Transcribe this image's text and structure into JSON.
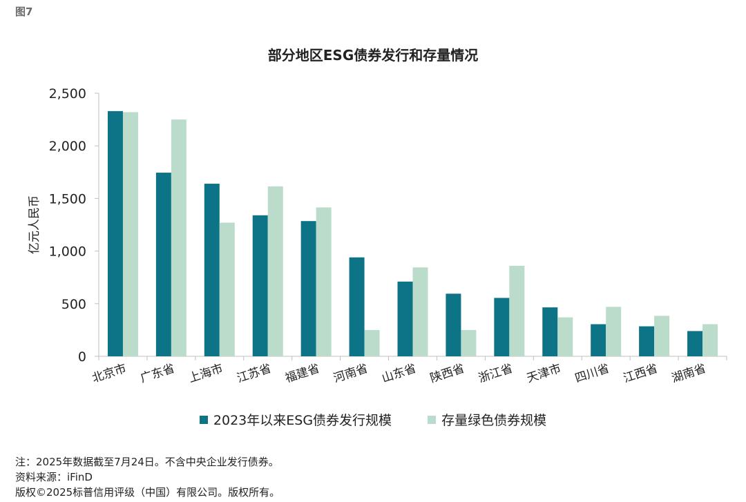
{
  "figure_label": "图7",
  "chart_data": {
    "type": "bar",
    "title": "部分地区ESG债券发行和存量情况",
    "xlabel": "",
    "ylabel": "亿元人民币",
    "ylim": [
      0,
      2500
    ],
    "yticks": [
      0,
      500,
      1000,
      1500,
      2000,
      2500
    ],
    "ytick_labels": [
      "0",
      "500",
      "1,000",
      "1,500",
      "2,000",
      "2,500"
    ],
    "grid": false,
    "legend_position": "bottom",
    "categories": [
      "北京市",
      "广东省",
      "上海市",
      "江苏省",
      "福建省",
      "河南省",
      "山东省",
      "陕西省",
      "浙江省",
      "天津市",
      "四川省",
      "江西省",
      "湖南省"
    ],
    "series": [
      {
        "name": "2023年以来ESG债券发行规模",
        "color": "#0d7386",
        "values": [
          2330,
          1745,
          1640,
          1340,
          1285,
          940,
          710,
          595,
          555,
          465,
          305,
          285,
          240
        ]
      },
      {
        "name": "存量绿色债券规模",
        "color": "#bcdccb",
        "values": [
          2320,
          2250,
          1270,
          1615,
          1415,
          250,
          845,
          250,
          860,
          370,
          470,
          385,
          305
        ]
      }
    ]
  },
  "footnotes": {
    "note": "注：2025年数据截至7月24日。不含中央企业发行债券。",
    "source": "资料来源：iFinD",
    "copyright": "版权©2025标普信用评级（中国）有限公司。版权所有。"
  }
}
